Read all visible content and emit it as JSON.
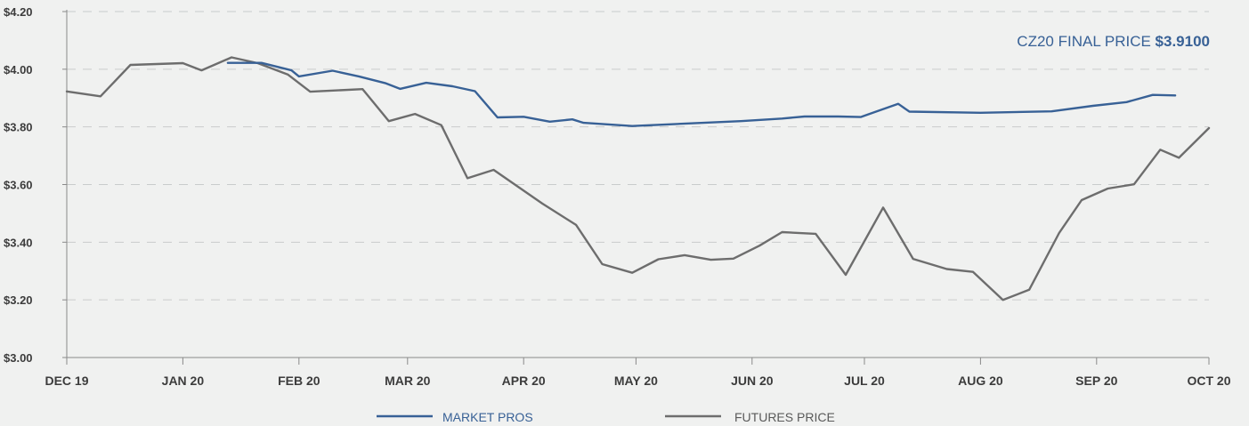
{
  "chart_data": {
    "type": "line",
    "title": "",
    "xlabel": "",
    "ylabel": "",
    "x_tick_labels": [
      "DEC 19",
      "JAN 20",
      "FEB 20",
      "MAR 20",
      "APR 20",
      "MAY 20",
      "JUN 20",
      "JUL 20",
      "AUG 20",
      "SEP 20",
      "OCT 20"
    ],
    "y_tick_labels": [
      "$3.00",
      "$3.20",
      "$3.40",
      "$3.60",
      "$3.80",
      "$4.00",
      "$4.20"
    ],
    "xlim": [
      "2019-12-01",
      "2020-10-01"
    ],
    "ylim": [
      3.0,
      4.2
    ],
    "grid": true,
    "legend_position": "bottom-center",
    "annotation": {
      "prefix": "CZ20 FINAL PRICE ",
      "value": "$3.9100"
    },
    "series": [
      {
        "name": "MARKET PROS",
        "color": "#386196",
        "points": [
          [
            "2020-01-13",
            4.022
          ],
          [
            "2020-01-22",
            4.022
          ],
          [
            "2020-01-30",
            3.996
          ],
          [
            "2020-02-01",
            3.975
          ],
          [
            "2020-02-10",
            3.995
          ],
          [
            "2020-02-17",
            3.975
          ],
          [
            "2020-02-24",
            3.952
          ],
          [
            "2020-02-28",
            3.932
          ],
          [
            "2020-03-06",
            3.953
          ],
          [
            "2020-03-13",
            3.941
          ],
          [
            "2020-03-19",
            3.924
          ],
          [
            "2020-03-25",
            3.833
          ],
          [
            "2020-04-01",
            3.835
          ],
          [
            "2020-04-08",
            3.818
          ],
          [
            "2020-04-14",
            3.826
          ],
          [
            "2020-04-17",
            3.814
          ],
          [
            "2020-04-30",
            3.803
          ],
          [
            "2020-05-15",
            3.812
          ],
          [
            "2020-05-29",
            3.82
          ],
          [
            "2020-06-09",
            3.829
          ],
          [
            "2020-06-15",
            3.836
          ],
          [
            "2020-06-24",
            3.836
          ],
          [
            "2020-06-30",
            3.834
          ],
          [
            "2020-07-10",
            3.88
          ],
          [
            "2020-07-13",
            3.853
          ],
          [
            "2020-08-01",
            3.849
          ],
          [
            "2020-08-20",
            3.854
          ],
          [
            "2020-08-31",
            3.873
          ],
          [
            "2020-09-09",
            3.886
          ],
          [
            "2020-09-16",
            3.911
          ],
          [
            "2020-09-22",
            3.909
          ]
        ]
      },
      {
        "name": "FUTURES PRICE",
        "color": "#6d6d6d",
        "points": [
          [
            "2019-12-01",
            3.923
          ],
          [
            "2019-12-10",
            3.906
          ],
          [
            "2019-12-18",
            4.015
          ],
          [
            "2020-01-01",
            4.021
          ],
          [
            "2020-01-06",
            3.996
          ],
          [
            "2020-01-14",
            4.041
          ],
          [
            "2020-01-21",
            4.021
          ],
          [
            "2020-01-29",
            3.982
          ],
          [
            "2020-02-04",
            3.922
          ],
          [
            "2020-02-18",
            3.931
          ],
          [
            "2020-02-25",
            3.82
          ],
          [
            "2020-03-03",
            3.845
          ],
          [
            "2020-03-10",
            3.806
          ],
          [
            "2020-03-17",
            3.622
          ],
          [
            "2020-03-24",
            3.651
          ],
          [
            "2020-04-06",
            3.534
          ],
          [
            "2020-04-15",
            3.46
          ],
          [
            "2020-04-22",
            3.324
          ],
          [
            "2020-04-30",
            3.294
          ],
          [
            "2020-05-07",
            3.341
          ],
          [
            "2020-05-14",
            3.355
          ],
          [
            "2020-05-21",
            3.339
          ],
          [
            "2020-05-27",
            3.343
          ],
          [
            "2020-06-03",
            3.388
          ],
          [
            "2020-06-09",
            3.435
          ],
          [
            "2020-06-18",
            3.429
          ],
          [
            "2020-06-26",
            3.287
          ],
          [
            "2020-07-06",
            3.52
          ],
          [
            "2020-07-14",
            3.342
          ],
          [
            "2020-07-23",
            3.307
          ],
          [
            "2020-07-30",
            3.297
          ],
          [
            "2020-08-07",
            3.2
          ],
          [
            "2020-08-14",
            3.235
          ],
          [
            "2020-08-22",
            3.432
          ],
          [
            "2020-08-28",
            3.546
          ],
          [
            "2020-09-04",
            3.586
          ],
          [
            "2020-09-11",
            3.601
          ],
          [
            "2020-09-18",
            3.721
          ],
          [
            "2020-09-23",
            3.693
          ],
          [
            "2020-10-01",
            3.796
          ]
        ]
      }
    ]
  }
}
